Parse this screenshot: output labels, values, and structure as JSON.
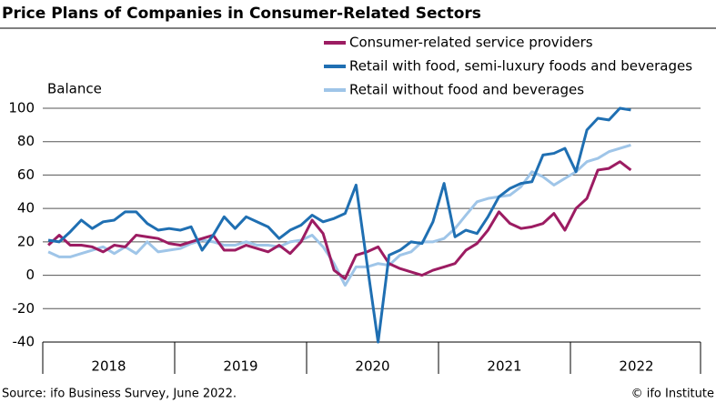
{
  "chart_data": {
    "type": "line",
    "title": "Price Plans of Companies in Consumer-Related Sectors",
    "y_label": "Balance",
    "source": "Source: ifo Business Survey, June 2022.",
    "credit": "© ifo Institute",
    "x": [
      2018.042,
      2018.125,
      2018.208,
      2018.292,
      2018.375,
      2018.458,
      2018.542,
      2018.625,
      2018.708,
      2018.792,
      2018.875,
      2018.958,
      2019.042,
      2019.125,
      2019.208,
      2019.292,
      2019.375,
      2019.458,
      2019.542,
      2019.625,
      2019.708,
      2019.792,
      2019.875,
      2019.958,
      2020.042,
      2020.125,
      2020.208,
      2020.292,
      2020.375,
      2020.458,
      2020.542,
      2020.625,
      2020.708,
      2020.792,
      2020.875,
      2020.958,
      2021.042,
      2021.125,
      2021.208,
      2021.292,
      2021.375,
      2021.458,
      2021.542,
      2021.625,
      2021.708,
      2021.792,
      2021.875,
      2021.958,
      2022.042,
      2022.125,
      2022.208,
      2022.292,
      2022.375,
      2022.458
    ],
    "series": [
      {
        "name": "Consumer-related service providers",
        "color": "#9c1c62",
        "values": [
          18,
          24,
          18,
          18,
          17,
          14,
          18,
          17,
          24,
          23,
          22,
          19,
          18,
          20,
          22,
          24,
          15,
          15,
          18,
          16,
          14,
          18,
          13,
          20,
          33,
          25,
          3,
          -2,
          12,
          14,
          17,
          7,
          4,
          2,
          0,
          3,
          5,
          7,
          15,
          19,
          27,
          38,
          31,
          28,
          29,
          31,
          37,
          27,
          40,
          46,
          63,
          64,
          68,
          63
        ]
      },
      {
        "name": "Retail with food, semi-luxury foods and beverages",
        "color": "#1f6fb2",
        "values": [
          21,
          20,
          26,
          33,
          28,
          32,
          33,
          38,
          38,
          31,
          27,
          28,
          27,
          29,
          15,
          24,
          35,
          28,
          35,
          32,
          29,
          22,
          27,
          30,
          36,
          32,
          34,
          37,
          54,
          7,
          -40,
          12,
          15,
          20,
          19,
          32,
          55,
          23,
          27,
          25,
          35,
          47,
          52,
          55,
          56,
          72,
          73,
          76,
          62,
          87,
          94,
          93,
          100,
          99
        ]
      },
      {
        "name": "Retail without food and beverages",
        "color": "#9fc5e8",
        "values": [
          14,
          11,
          11,
          13,
          15,
          17,
          13,
          17,
          13,
          20,
          14,
          15,
          16,
          19,
          21,
          20,
          18,
          18,
          20,
          18,
          18,
          17,
          20,
          21,
          24,
          17,
          7,
          -6,
          5,
          5,
          7,
          6,
          12,
          14,
          20,
          20,
          22,
          28,
          36,
          44,
          46,
          47,
          48,
          53,
          62,
          59,
          54,
          58,
          62,
          68,
          70,
          74,
          76,
          78
        ]
      }
    ],
    "xlim": [
      2018,
      2023
    ],
    "xticks": [
      {
        "value": 2018.5,
        "label": "2018"
      },
      {
        "value": 2019.5,
        "label": "2019"
      },
      {
        "value": 2020.5,
        "label": "2020"
      },
      {
        "value": 2021.5,
        "label": "2021"
      },
      {
        "value": 2022.5,
        "label": "2022"
      }
    ],
    "xminorticks": [
      2018,
      2019,
      2020,
      2021,
      2022,
      2023
    ],
    "ylim": [
      -40,
      100
    ],
    "yticks": [
      -40,
      -20,
      0,
      20,
      40,
      60,
      80,
      100
    ],
    "grid": true,
    "legend": "top-right"
  }
}
